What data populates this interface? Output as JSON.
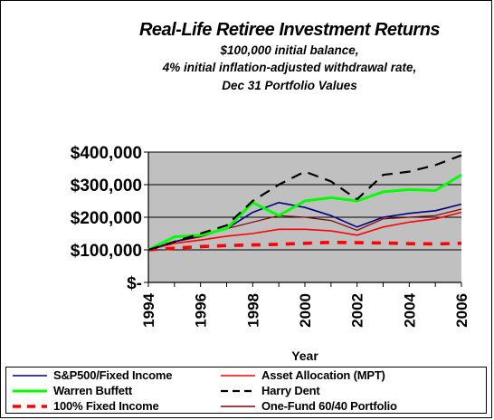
{
  "title": {
    "line1": "Real-Life Retiree Investment Returns",
    "line2": "$100,000 initial balance,",
    "line3": "4% initial inflation-adjusted withdrawal rate,",
    "line4": "Dec 31 Portfolio Values"
  },
  "chart_data": {
    "type": "line",
    "xlabel": "Year",
    "ylabel": "",
    "x": [
      1994,
      1995,
      1996,
      1997,
      1998,
      1999,
      2000,
      2001,
      2002,
      2003,
      2004,
      2005,
      2006
    ],
    "x_tick_labels": [
      "1994",
      "1996",
      "1998",
      "2000",
      "2002",
      "2004",
      "2006"
    ],
    "x_tick_values": [
      1994,
      1996,
      1998,
      2000,
      2002,
      2004,
      2006
    ],
    "y_tick_labels": [
      "$-",
      "$100,000",
      "$200,000",
      "$300,000",
      "$400,000"
    ],
    "y_tick_values": [
      0,
      100000,
      200000,
      300000,
      400000
    ],
    "ylim": [
      0,
      400000
    ],
    "xlim": [
      1994,
      2006
    ],
    "grid": "horizontal",
    "plot_background": "#c0c0c0",
    "legend_position": "bottom",
    "series": [
      {
        "name": "S&P500/Fixed Income",
        "color": "#000080",
        "dash": "solid",
        "width": 1.6,
        "values": [
          100000,
          125000,
          145000,
          165000,
          215000,
          245000,
          230000,
          205000,
          170000,
          200000,
          212000,
          220000,
          240000
        ]
      },
      {
        "name": "Asset Allocation (MPT)",
        "color": "#ff0000",
        "dash": "solid",
        "width": 1.6,
        "values": [
          100000,
          120000,
          130000,
          142000,
          150000,
          163000,
          163000,
          158000,
          145000,
          170000,
          185000,
          195000,
          215000
        ]
      },
      {
        "name": "Warren Buffett",
        "color": "#00ff00",
        "dash": "solid",
        "width": 3,
        "values": [
          100000,
          140000,
          145000,
          165000,
          245000,
          205000,
          250000,
          260000,
          250000,
          278000,
          285000,
          282000,
          330000
        ]
      },
      {
        "name": "Harry Dent",
        "color": "#000000",
        "dash": "long-dash",
        "width": 2.2,
        "values": [
          100000,
          125000,
          150000,
          175000,
          250000,
          300000,
          340000,
          310000,
          255000,
          330000,
          340000,
          360000,
          390000
        ]
      },
      {
        "name": "100% Fixed Income",
        "color": "#ff0000",
        "dash": "heavy-dash",
        "width": 3.6,
        "values": [
          100000,
          105000,
          110000,
          113000,
          115000,
          117000,
          120000,
          123000,
          122000,
          121000,
          119000,
          118000,
          120000
        ]
      },
      {
        "name": "One-Fund 60/40 Portfolio",
        "color": "#800000",
        "dash": "solid",
        "width": 1.2,
        "values": [
          100000,
          125000,
          140000,
          165000,
          185000,
          205000,
          200000,
          190000,
          160000,
          195000,
          200000,
          205000,
          225000
        ]
      }
    ]
  }
}
